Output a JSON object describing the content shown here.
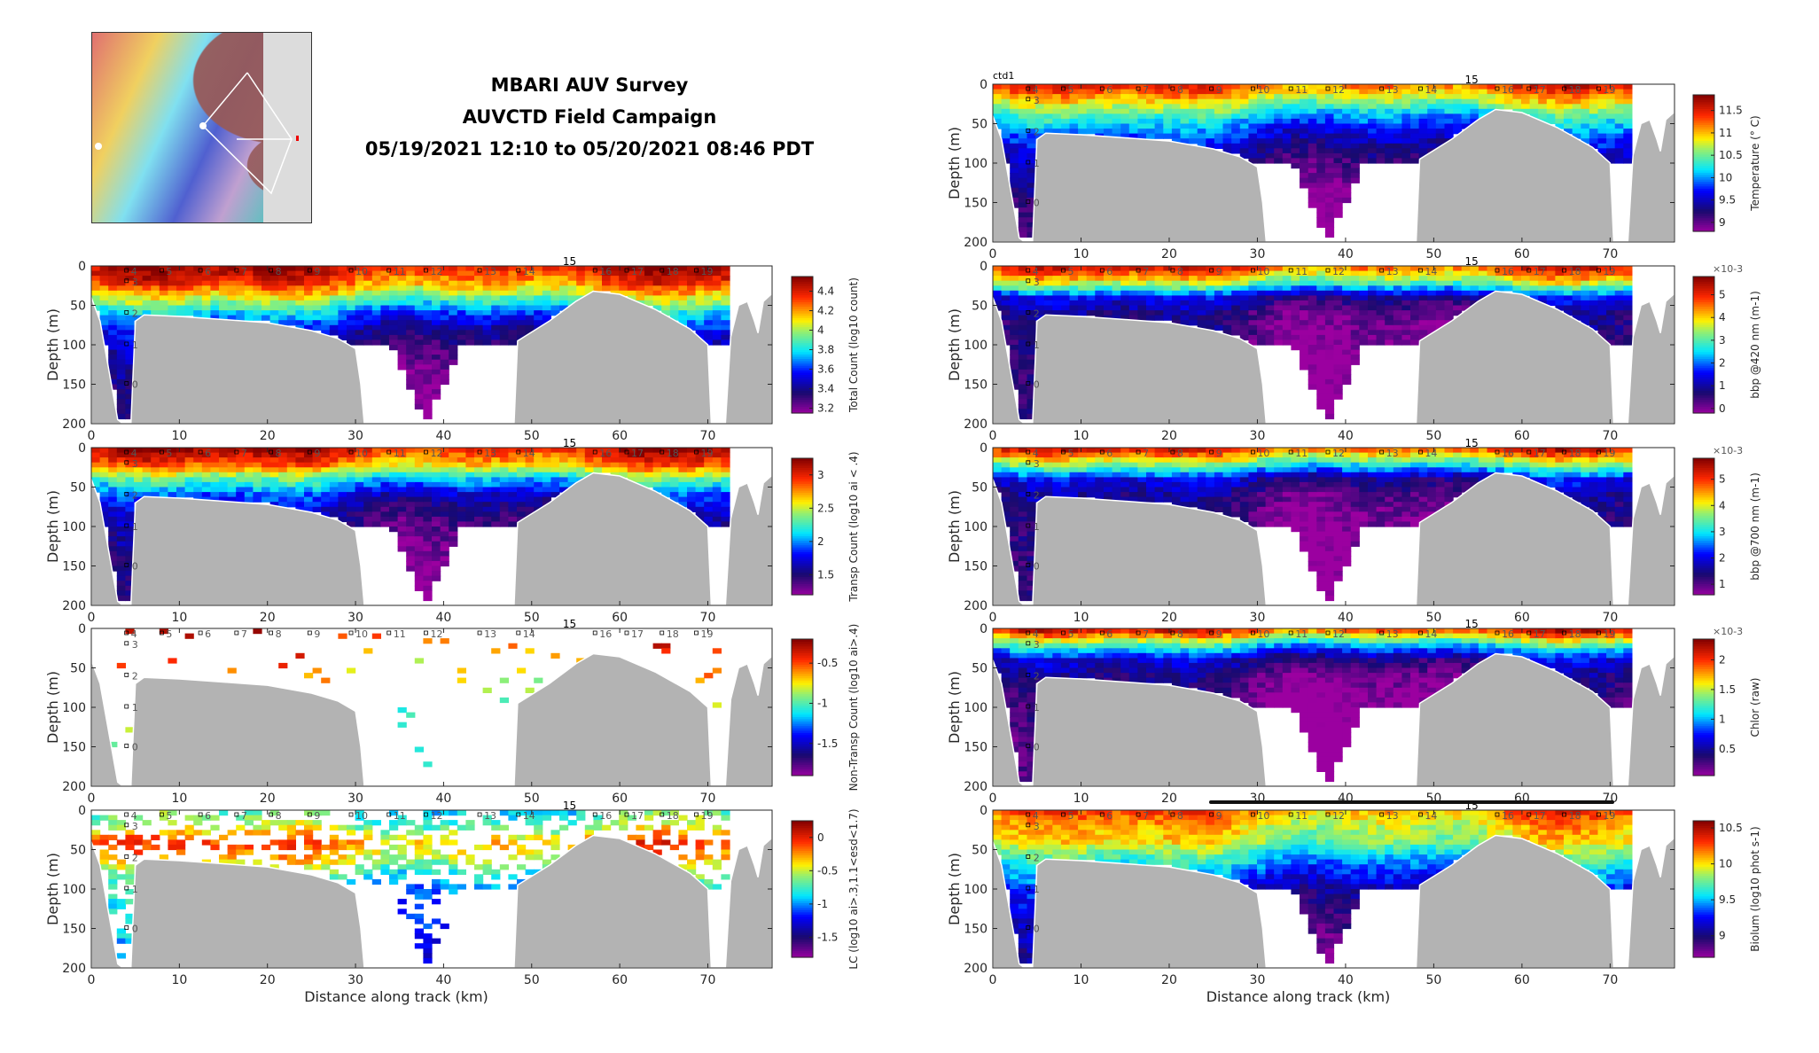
{
  "header": {
    "title_line1": "MBARI AUV Survey",
    "title_line2": "AUVCTD Field Campaign",
    "title_line3": "05/19/2021 12:10 to 05/20/2021 08:46 PDT"
  },
  "map": {
    "label": "survey track map"
  },
  "ctd_label": "ctd1",
  "shared": {
    "xlabel": "Distance along track (km)",
    "ylabel": "Depth (m)",
    "xlim": [
      0,
      77.3
    ],
    "ylim": [
      0,
      200
    ],
    "xticks": [
      0,
      10,
      20,
      30,
      40,
      50,
      60,
      70
    ],
    "yticks": [
      0,
      50,
      100,
      150,
      200
    ],
    "stations": [
      {
        "label": "4",
        "km": 5.2
      },
      {
        "label": "5",
        "km": 9.2
      },
      {
        "label": "6",
        "km": 13.6
      },
      {
        "label": "7",
        "km": 17.7
      },
      {
        "label": "8",
        "km": 21.6
      },
      {
        "label": "9",
        "km": 26.0
      },
      {
        "label": "10",
        "km": 30.7
      },
      {
        "label": "11",
        "km": 35.0
      },
      {
        "label": "12",
        "km": 39.2
      },
      {
        "label": "13",
        "km": 45.3
      },
      {
        "label": "14",
        "km": 49.7
      },
      {
        "label": "16",
        "km": 58.4
      },
      {
        "label": "17",
        "km": 62.0
      },
      {
        "label": "18",
        "km": 66.0
      },
      {
        "label": "19",
        "km": 69.9
      }
    ],
    "station_15": {
      "label": "15",
      "km": 54.3
    },
    "depth_stations": [
      {
        "label": "3",
        "depth": 20
      },
      {
        "label": "2",
        "depth": 60
      },
      {
        "label": "1",
        "depth": 100
      },
      {
        "label": "0",
        "depth": 150
      }
    ],
    "bathymetry": [
      [
        [
          0,
          200
        ],
        [
          0,
          40
        ],
        [
          1,
          70
        ],
        [
          3,
          195
        ],
        [
          3.6,
          200
        ]
      ],
      [
        [
          4.5,
          200
        ],
        [
          5,
          70
        ],
        [
          6,
          62
        ],
        [
          10,
          64
        ],
        [
          15,
          68
        ],
        [
          20,
          72
        ],
        [
          25,
          82
        ],
        [
          28,
          92
        ],
        [
          30,
          105
        ],
        [
          30.6,
          150
        ],
        [
          31,
          200
        ]
      ],
      [
        [
          48,
          200
        ],
        [
          48.4,
          95
        ],
        [
          52,
          70
        ],
        [
          55,
          45
        ],
        [
          57,
          32
        ],
        [
          60,
          36
        ],
        [
          64,
          55
        ],
        [
          68,
          80
        ],
        [
          70,
          100
        ],
        [
          70.4,
          200
        ]
      ],
      [
        [
          72,
          200
        ],
        [
          72.6,
          90
        ],
        [
          73.5,
          50
        ],
        [
          74.5,
          45
        ],
        [
          75.3,
          70
        ],
        [
          75.7,
          85
        ],
        [
          76.3,
          45
        ],
        [
          77.3,
          35
        ],
        [
          77.3,
          200
        ]
      ]
    ],
    "depth_levels": [
      0,
      20,
      40,
      60,
      80,
      100,
      150,
      200
    ]
  },
  "chart_data": [
    {
      "type": "heatmap",
      "panel": "left-1",
      "colorbar_label": "Total Count (log10 count)",
      "clim": [
        3.15,
        4.55
      ],
      "cticks": [
        3.2,
        3.4,
        3.6,
        3.8,
        4.0,
        4.2,
        4.4
      ],
      "profile": [
        4.45,
        4.3,
        4.0,
        3.7,
        3.5,
        3.4,
        3.3,
        3.25
      ],
      "sparse": 0,
      "xlabel_shown": false
    },
    {
      "type": "heatmap",
      "panel": "left-2",
      "colorbar_label": "Transp Count (log10 ai < .4)",
      "clim": [
        1.2,
        3.25
      ],
      "cticks": [
        1.5,
        2,
        2.5,
        3
      ],
      "profile": [
        3.1,
        2.8,
        2.2,
        1.8,
        1.6,
        1.5,
        1.4,
        1.3
      ],
      "sparse": 0,
      "xlabel_shown": false
    },
    {
      "type": "heatmap",
      "panel": "left-3",
      "colorbar_label": "Non-Transp Count (log10 ai>.4)",
      "clim": [
        -1.9,
        -0.2
      ],
      "cticks": [
        -1.5,
        -1,
        -0.5
      ],
      "profile": [
        -0.4,
        -0.5,
        -0.6,
        -0.7,
        -0.8,
        -0.9,
        -1.0,
        -1.0
      ],
      "sparse": 0.04,
      "xlabel_shown": false
    },
    {
      "type": "heatmap",
      "panel": "left-4",
      "colorbar_label": "LC (log10 ai>.3,1.1<esd<1.7)",
      "clim": [
        -1.8,
        0.25
      ],
      "cticks": [
        -1.5,
        -1,
        -0.5,
        0
      ],
      "profile": [
        -0.8,
        -0.6,
        -0.2,
        -0.4,
        -0.7,
        -0.9,
        -1.0,
        -1.2
      ],
      "sparse": 0.45,
      "xlabel_shown": true
    },
    {
      "type": "heatmap",
      "panel": "right-1",
      "colorbar_label": "Temperature (° C)",
      "clim": [
        8.8,
        11.85
      ],
      "cticks": [
        9,
        9.5,
        10,
        10.5,
        11,
        11.5
      ],
      "profile": [
        11.4,
        10.8,
        10.2,
        9.8,
        9.5,
        9.3,
        9.0,
        8.9
      ],
      "sparse": 0,
      "xlabel_shown": false
    },
    {
      "type": "heatmap",
      "panel": "right-2",
      "colorbar_label": "bbp @420 nm (m-1)",
      "exponent": "×10-3",
      "clim": [
        -0.2,
        5.8
      ],
      "cticks": [
        0,
        1,
        2,
        3,
        4,
        5
      ],
      "profile": [
        5.0,
        3.5,
        1.2,
        0.5,
        0.4,
        0.3,
        0.2,
        0.2
      ],
      "sparse": 0,
      "xlabel_shown": false
    },
    {
      "type": "heatmap",
      "panel": "right-3",
      "colorbar_label": "bbp @700 nm (m-1)",
      "exponent": "×10-3",
      "clim": [
        0.6,
        5.8
      ],
      "cticks": [
        1,
        2,
        3,
        4,
        5
      ],
      "profile": [
        5.2,
        3.5,
        1.8,
        1.3,
        1.1,
        1.0,
        0.9,
        0.9
      ],
      "sparse": 0,
      "xlabel_shown": false
    },
    {
      "type": "heatmap",
      "panel": "right-4",
      "colorbar_label": "Chlor (raw)",
      "exponent": "×10-3",
      "clim": [
        0.05,
        2.35
      ],
      "cticks": [
        0.5,
        1,
        1.5,
        2
      ],
      "profile": [
        2.1,
        1.2,
        0.5,
        0.3,
        0.2,
        0.15,
        0.1,
        0.1
      ],
      "sparse": 0,
      "xlabel_shown": false
    },
    {
      "type": "heatmap",
      "panel": "right-5",
      "colorbar_label": "Biolum (log10 phot s-1)",
      "clim": [
        8.7,
        10.6
      ],
      "cticks": [
        9,
        9.5,
        10,
        10.5
      ],
      "profile": [
        10.2,
        10.0,
        9.9,
        9.6,
        9.4,
        9.2,
        9.0,
        8.9
      ],
      "sparse": 0,
      "xlabel_shown": true
    }
  ]
}
